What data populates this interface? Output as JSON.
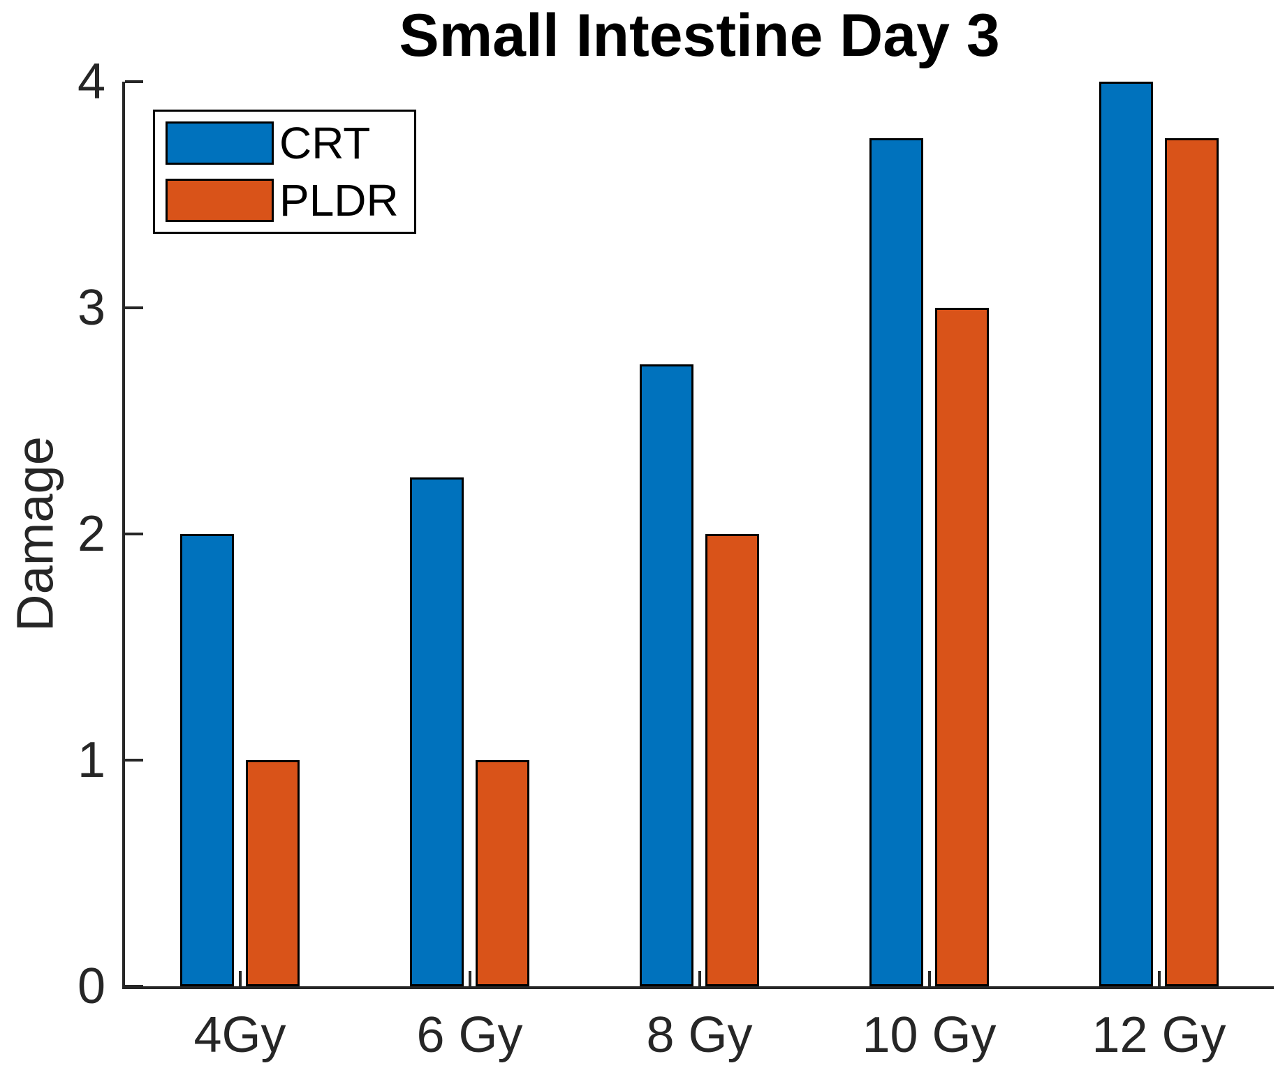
{
  "chart_data": {
    "type": "bar",
    "title": "Small Intestine Day 3",
    "xlabel": "",
    "ylabel": "Damage",
    "categories": [
      "4Gy",
      "6 Gy",
      "8 Gy",
      "10 Gy",
      "12 Gy"
    ],
    "series": [
      {
        "name": "CRT",
        "color": "#0072BD",
        "values": [
          2.0,
          2.25,
          2.75,
          3.75,
          4.0
        ]
      },
      {
        "name": "PLDR",
        "color": "#D95319",
        "values": [
          1.0,
          1.0,
          2.0,
          3.0,
          3.75
        ]
      }
    ],
    "ylim": [
      0,
      4
    ],
    "yticks": [
      0,
      1,
      2,
      3,
      4
    ],
    "grid": false,
    "legend_position": "top-left",
    "bar_edge_color": "#000000",
    "axis_color": "#262626",
    "tick_direction": "in"
  }
}
